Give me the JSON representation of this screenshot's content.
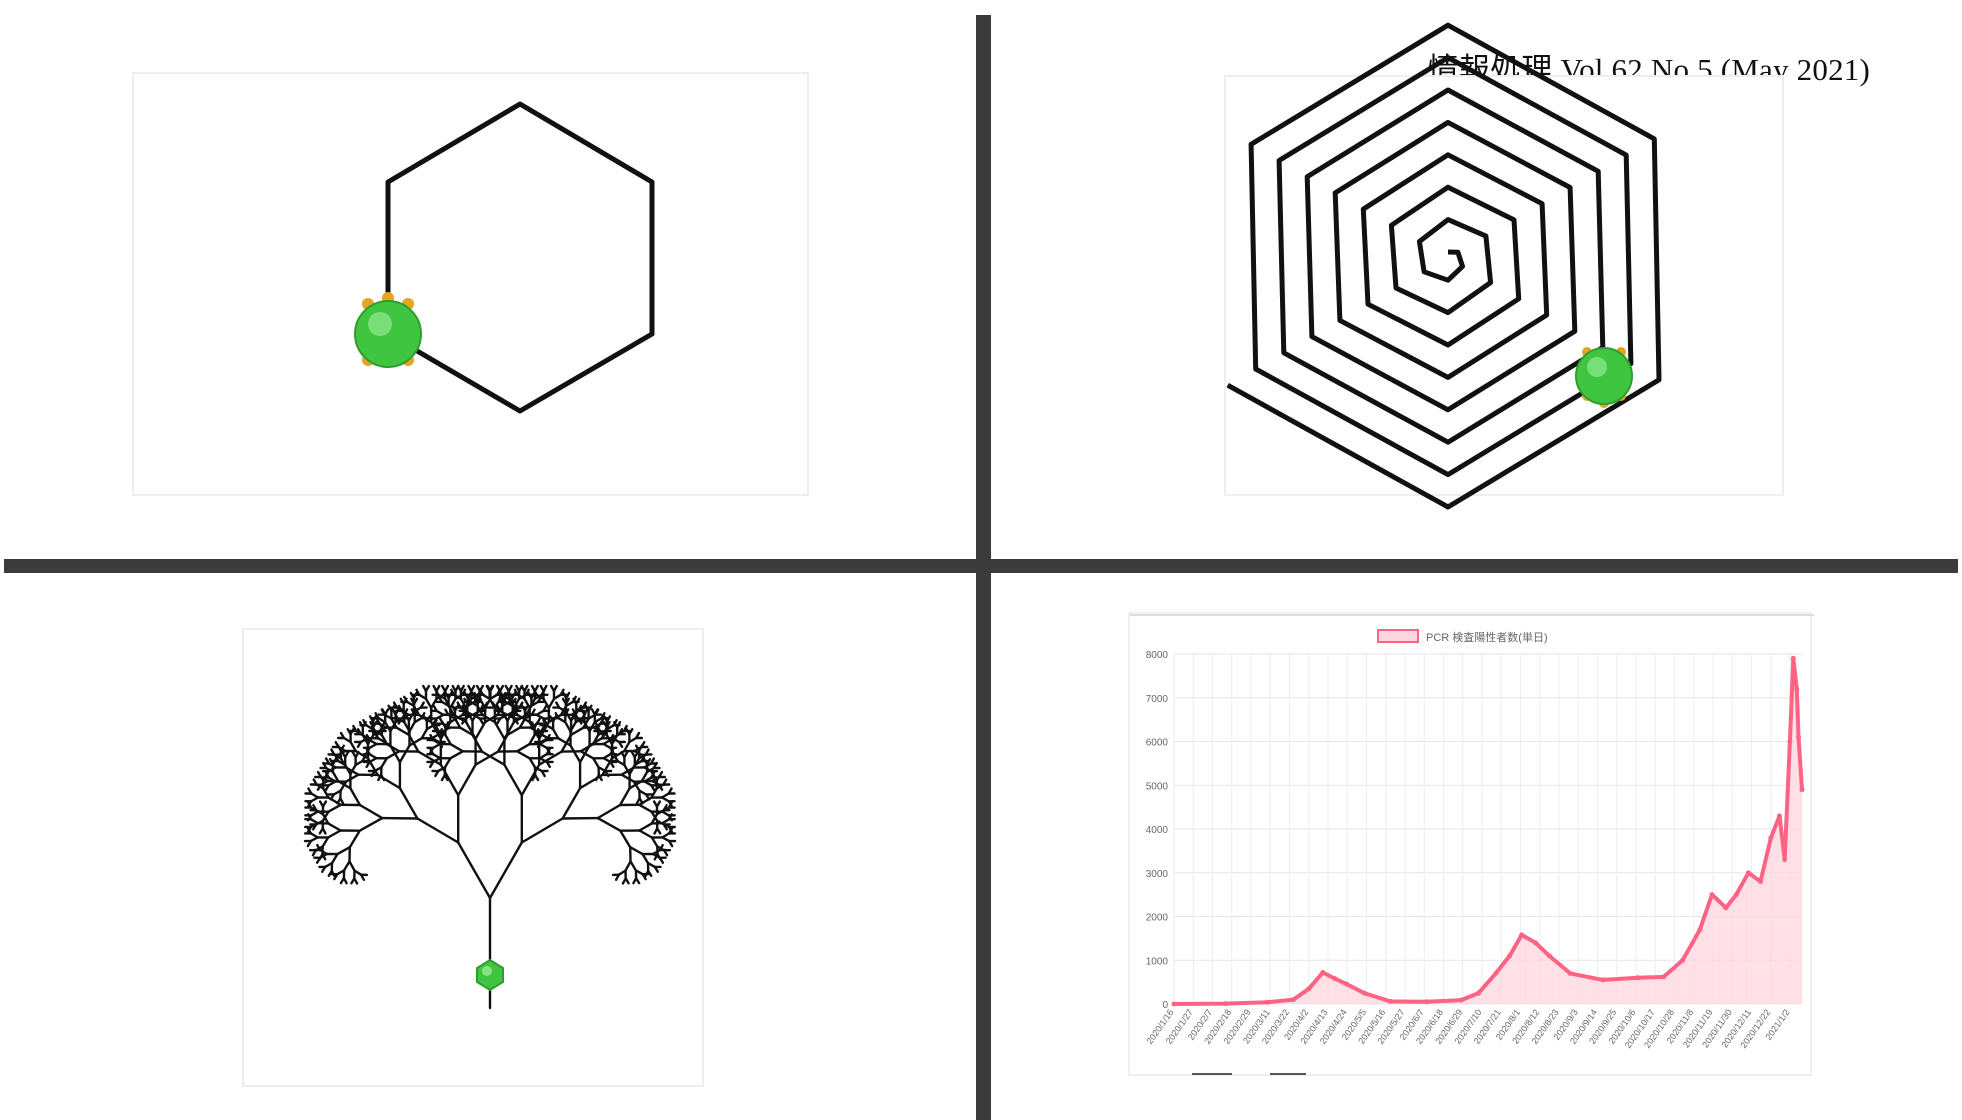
{
  "header": {
    "journal": "情報処理 Vol.62  No.5 (May 2021)"
  },
  "colors": {
    "stroke": "#111111",
    "turtle_body": "#3fc53f",
    "turtle_feet": "#e8a325",
    "series": "#ff6384",
    "series_fill": "#ffd6df",
    "divider": "#3b3b3b"
  },
  "icons": {
    "turtle": "turtle-sprite-icon"
  },
  "chart_data": {
    "type": "line",
    "title": "",
    "legend": {
      "label": "PCR 検査陽性者数(単日)",
      "position": "top"
    },
    "ylim": [
      0,
      8000
    ],
    "yticks": [
      0,
      1000,
      2000,
      3000,
      4000,
      5000,
      6000,
      7000,
      8000
    ],
    "grid": true,
    "x_start": "2020-01-16",
    "x_end": "2021-01-13",
    "xticks": [
      "2020/1/16",
      "2020/1/27",
      "2020/2/7",
      "2020/2/18",
      "2020/2/29",
      "2020/3/11",
      "2020/3/22",
      "2020/4/2",
      "2020/4/13",
      "2020/4/24",
      "2020/5/5",
      "2020/5/16",
      "2020/5/27",
      "2020/6/7",
      "2020/6/18",
      "2020/6/29",
      "2020/7/10",
      "2020/7/21",
      "2020/8/1",
      "2020/8/12",
      "2020/8/23",
      "2020/9/3",
      "2020/9/14",
      "2020/9/25",
      "2020/10/6",
      "2020/10/17",
      "2020/10/28",
      "2020/11/8",
      "2020/11/19",
      "2020/11/30",
      "2020/12/11",
      "2020/12/22",
      "2021/1/2"
    ],
    "series": [
      {
        "name": "PCR 検査陽性者数(単日)",
        "points": [
          [
            "2020-01-16",
            0
          ],
          [
            "2020-02-15",
            10
          ],
          [
            "2020-03-10",
            40
          ],
          [
            "2020-03-25",
            100
          ],
          [
            "2020-04-03",
            350
          ],
          [
            "2020-04-11",
            720
          ],
          [
            "2020-04-18",
            580
          ],
          [
            "2020-04-25",
            450
          ],
          [
            "2020-05-05",
            250
          ],
          [
            "2020-05-20",
            60
          ],
          [
            "2020-06-10",
            50
          ],
          [
            "2020-06-30",
            90
          ],
          [
            "2020-07-10",
            250
          ],
          [
            "2020-07-20",
            700
          ],
          [
            "2020-07-28",
            1100
          ],
          [
            "2020-08-04",
            1580
          ],
          [
            "2020-08-12",
            1400
          ],
          [
            "2020-08-20",
            1100
          ],
          [
            "2020-09-01",
            700
          ],
          [
            "2020-09-20",
            550
          ],
          [
            "2020-10-10",
            600
          ],
          [
            "2020-10-25",
            620
          ],
          [
            "2020-11-05",
            1000
          ],
          [
            "2020-11-15",
            1700
          ],
          [
            "2020-11-22",
            2500
          ],
          [
            "2020-11-30",
            2200
          ],
          [
            "2020-12-06",
            2500
          ],
          [
            "2020-12-13",
            3000
          ],
          [
            "2020-12-20",
            2800
          ],
          [
            "2020-12-26",
            3800
          ],
          [
            "2020-12-31",
            4300
          ],
          [
            "2021-01-03",
            3300
          ],
          [
            "2021-01-06",
            6000
          ],
          [
            "2021-01-08",
            7900
          ],
          [
            "2021-01-10",
            7200
          ],
          [
            "2021-01-11",
            6100
          ],
          [
            "2021-01-13",
            4900
          ]
        ]
      }
    ]
  }
}
